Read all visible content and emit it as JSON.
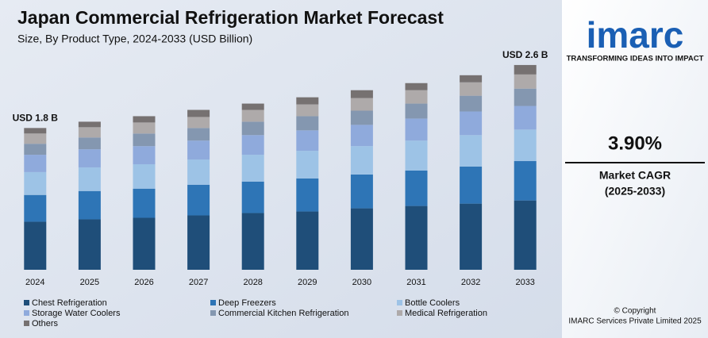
{
  "chart_data": {
    "type": "stacked_bar",
    "title": "Japan Commercial Refrigeration Market Forecast",
    "subtitle": "Size, By Product Type, 2024-2033 (USD Billion)",
    "categories": [
      "2024",
      "2025",
      "2026",
      "2027",
      "2028",
      "2029",
      "2030",
      "2031",
      "2032",
      "2033"
    ],
    "series": [
      {
        "name": "Chest Refrigeration",
        "color": "#1f4e79",
        "values": [
          0.61,
          0.64,
          0.66,
          0.69,
          0.72,
          0.74,
          0.78,
          0.81,
          0.84,
          0.88
        ]
      },
      {
        "name": "Deep Freezers",
        "color": "#2e75b6",
        "values": [
          0.34,
          0.36,
          0.37,
          0.39,
          0.4,
          0.42,
          0.43,
          0.45,
          0.47,
          0.5
        ]
      },
      {
        "name": "Bottle Coolers",
        "color": "#9dc3e6",
        "values": [
          0.29,
          0.3,
          0.31,
          0.32,
          0.34,
          0.35,
          0.36,
          0.38,
          0.4,
          0.4
        ]
      },
      {
        "name": "Storage Water Coolers",
        "color": "#8faadc",
        "values": [
          0.22,
          0.23,
          0.23,
          0.24,
          0.25,
          0.26,
          0.27,
          0.28,
          0.3,
          0.3
        ]
      },
      {
        "name": "Commercial Kitchen Refrigeration",
        "color": "#8497b0",
        "values": [
          0.14,
          0.15,
          0.16,
          0.16,
          0.17,
          0.18,
          0.18,
          0.19,
          0.2,
          0.22
        ]
      },
      {
        "name": "Medical Refrigeration",
        "color": "#aeaaaa",
        "values": [
          0.13,
          0.13,
          0.14,
          0.14,
          0.15,
          0.15,
          0.16,
          0.17,
          0.17,
          0.18
        ]
      },
      {
        "name": "Others",
        "color": "#767171",
        "values": [
          0.07,
          0.07,
          0.08,
          0.09,
          0.08,
          0.09,
          0.1,
          0.09,
          0.09,
          0.12
        ]
      }
    ],
    "annotations": [
      {
        "label": "USD 1.8 B",
        "category": "2024"
      },
      {
        "label": "USD 2.6 B",
        "category": "2033"
      }
    ],
    "ylim": [
      0,
      2.7
    ]
  },
  "sidebar": {
    "logo": "imarc",
    "tagline": "TRANSFORMING IDEAS INTO IMPACT",
    "cagr_value": "3.90%",
    "cagr_label": "Market CAGR",
    "cagr_period": "(2025-2033)",
    "copyright": "© Copyright",
    "company": "IMARC Services Private Limited 2025"
  }
}
